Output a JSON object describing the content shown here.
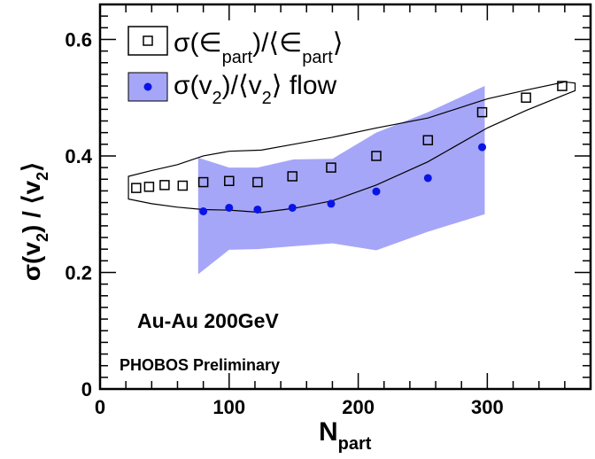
{
  "chart_data": {
    "type": "scatter",
    "title": "",
    "xlabel": {
      "main": "N",
      "sub": "part"
    },
    "ylabel": {
      "p1": "σ(",
      "b1": "v",
      "s1": "2",
      "p2": ") / ⟨",
      "b2": "v",
      "s2": "2",
      "p3": "⟩"
    },
    "xlim": [
      0,
      380
    ],
    "ylim": [
      0,
      0.66
    ],
    "x_ticks": [
      0,
      100,
      200,
      300
    ],
    "y_ticks": [
      0,
      0.2,
      0.4,
      0.6
    ],
    "x_tick_labels": [
      "0",
      "100",
      "200",
      "300"
    ],
    "y_tick_labels": [
      "0",
      "0.2",
      "0.4",
      "0.6"
    ],
    "grid": false,
    "legend_position": "top-left",
    "legend": [
      {
        "p1": "σ(∈",
        "s1": "part",
        "p2": ")/⟨∈",
        "s2": "part",
        "p3": "⟩"
      },
      {
        "p1": "σ(v",
        "s1": "2",
        "p2": ")/⟨v",
        "s2": "2",
        "p3": "⟩ flow"
      }
    ],
    "annotations": [
      "Au-Au 200GeV",
      "PHOBOS Preliminary"
    ],
    "colors": {
      "open_squares": "#000000",
      "flow_points": "#0a14e6",
      "flow_band": "#a6a6f8",
      "band_outline": "#000000"
    },
    "series": [
      {
        "marker": "open-square",
        "x": [
          28,
          38,
          50,
          64,
          80,
          100,
          122,
          149,
          179,
          214,
          254,
          296,
          330,
          358
        ],
        "y": [
          0.345,
          0.347,
          0.35,
          0.349,
          0.355,
          0.357,
          0.355,
          0.365,
          0.38,
          0.4,
          0.427,
          0.475,
          0.5,
          0.52
        ]
      },
      {
        "marker": "filled-circle",
        "x": [
          80,
          100,
          122,
          149,
          179,
          214,
          254,
          296
        ],
        "y": [
          0.305,
          0.311,
          0.308,
          0.311,
          0.318,
          0.339,
          0.362,
          0.415
        ]
      }
    ],
    "flow_band": {
      "x": [
        76,
        100,
        122,
        150,
        180,
        214,
        254,
        298
      ],
      "lower": [
        0.197,
        0.239,
        0.24,
        0.245,
        0.25,
        0.238,
        0.27,
        0.3
      ],
      "upper": [
        0.397,
        0.38,
        0.38,
        0.394,
        0.395,
        0.44,
        0.475,
        0.52
      ]
    },
    "eps_band": {
      "x": [
        22,
        40,
        60,
        80,
        100,
        125,
        150,
        180,
        214,
        254,
        300,
        330,
        360,
        368
      ],
      "upper": [
        0.365,
        0.375,
        0.385,
        0.4,
        0.408,
        0.41,
        0.42,
        0.432,
        0.448,
        0.465,
        0.498,
        0.513,
        0.527,
        0.525
      ],
      "lower": [
        0.326,
        0.318,
        0.312,
        0.308,
        0.307,
        0.303,
        0.31,
        0.323,
        0.35,
        0.39,
        0.448,
        0.478,
        0.505,
        0.512
      ]
    }
  }
}
